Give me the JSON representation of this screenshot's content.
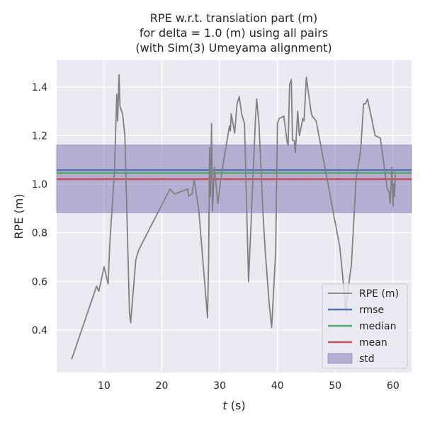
{
  "chart_data": {
    "type": "line",
    "title_lines": [
      "RPE w.r.t. translation part (m)",
      "for delta = 1.0 (m) using all pairs",
      "(with Sim(3) Umeyama alignment)"
    ],
    "xlabel_var": "t",
    "xlabel_unit": " (s)",
    "ylabel": "RPE (m)",
    "xlim": [
      1.8,
      63.2
    ],
    "ylim": [
      0.225,
      1.51
    ],
    "x_ticks": [
      10,
      20,
      30,
      40,
      50,
      60
    ],
    "y_ticks": [
      0.4,
      0.6,
      0.8,
      1.0,
      1.2,
      1.4
    ],
    "y_tick_labels": [
      "0.4",
      "0.6",
      "0.8",
      "1.0",
      "1.2",
      "1.4"
    ],
    "grid": true,
    "legend_position": "lower-right",
    "colors": {
      "background": "#eaeaf2",
      "grid": "#ffffff",
      "rpe": "#808080",
      "rmse": "#4c72b0",
      "median": "#55a868",
      "mean": "#c44e52",
      "std_fill": "#8172b2"
    },
    "series": [
      {
        "name": "RPE (m)",
        "points": [
          [
            4.4,
            0.28
          ],
          [
            8.7,
            0.58
          ],
          [
            9.1,
            0.56
          ],
          [
            10.0,
            0.66
          ],
          [
            10.7,
            0.59
          ],
          [
            11.0,
            0.76
          ],
          [
            11.8,
            1.05
          ],
          [
            12.2,
            1.37
          ],
          [
            12.35,
            1.26
          ],
          [
            12.6,
            1.45
          ],
          [
            12.75,
            1.32
          ],
          [
            13.2,
            1.29
          ],
          [
            13.6,
            1.2
          ],
          [
            14.4,
            0.47
          ],
          [
            14.6,
            0.43
          ],
          [
            15.5,
            0.69
          ],
          [
            16.0,
            0.73
          ],
          [
            21.4,
            0.98
          ],
          [
            22.2,
            0.96
          ],
          [
            24.5,
            0.98
          ],
          [
            24.6,
            0.95
          ],
          [
            25.2,
            0.96
          ],
          [
            25.6,
            1.02
          ],
          [
            26.4,
            0.89
          ],
          [
            27.9,
            0.45
          ],
          [
            28.1,
            0.7
          ],
          [
            28.25,
            1.15
          ],
          [
            28.4,
            0.95
          ],
          [
            28.6,
            1.25
          ],
          [
            28.75,
            0.89
          ],
          [
            29.1,
            1.07
          ],
          [
            29.7,
            0.92
          ],
          [
            30.3,
            1.04
          ],
          [
            31.7,
            1.24
          ],
          [
            31.85,
            1.22
          ],
          [
            32.0,
            1.29
          ],
          [
            32.6,
            1.21
          ],
          [
            33.0,
            1.33
          ],
          [
            33.4,
            1.36
          ],
          [
            33.8,
            1.29
          ],
          [
            34.3,
            1.25
          ],
          [
            35.0,
            0.6
          ],
          [
            36.2,
            1.27
          ],
          [
            36.4,
            1.35
          ],
          [
            36.8,
            1.25
          ],
          [
            37.5,
            0.88
          ],
          [
            37.9,
            0.72
          ],
          [
            38.6,
            0.5
          ],
          [
            39.0,
            0.41
          ],
          [
            39.7,
            0.73
          ],
          [
            40.0,
            1.25
          ],
          [
            40.3,
            1.27
          ],
          [
            41.1,
            1.28
          ],
          [
            41.7,
            1.17
          ],
          [
            41.85,
            1.16
          ],
          [
            42.1,
            1.41
          ],
          [
            42.4,
            1.43
          ],
          [
            42.6,
            1.18
          ],
          [
            42.9,
            1.18
          ],
          [
            43.1,
            1.13
          ],
          [
            43.5,
            1.3
          ],
          [
            43.8,
            1.2
          ],
          [
            44.4,
            1.27
          ],
          [
            44.6,
            1.26
          ],
          [
            45.0,
            1.44
          ],
          [
            45.8,
            1.3
          ],
          [
            46.0,
            1.28
          ],
          [
            46.7,
            1.26
          ],
          [
            50.8,
            0.74
          ],
          [
            51.9,
            0.47
          ],
          [
            52.0,
            0.52
          ],
          [
            52.4,
            0.6
          ],
          [
            52.8,
            0.67
          ],
          [
            53.6,
            1.02
          ],
          [
            54.4,
            1.14
          ],
          [
            54.9,
            1.33
          ],
          [
            55.2,
            1.33
          ],
          [
            55.6,
            1.35
          ],
          [
            56.9,
            1.2
          ],
          [
            57.8,
            1.19
          ],
          [
            59.0,
            0.98
          ],
          [
            59.3,
            0.97
          ],
          [
            59.5,
            0.92
          ],
          [
            59.8,
            1.07
          ],
          [
            60.0,
            0.91
          ],
          [
            60.1,
            1.0
          ],
          [
            60.25,
            0.95
          ],
          [
            60.4,
            1.04
          ]
        ]
      }
    ],
    "stats": [
      {
        "name": "rmse",
        "value": 1.058
      },
      {
        "name": "median",
        "value": 1.046
      },
      {
        "name": "mean",
        "value": 1.021
      }
    ],
    "std_band": {
      "name": "std",
      "range": [
        0.883,
        1.161
      ]
    },
    "legend": [
      "RPE (m)",
      "rmse",
      "median",
      "mean",
      "std"
    ]
  }
}
